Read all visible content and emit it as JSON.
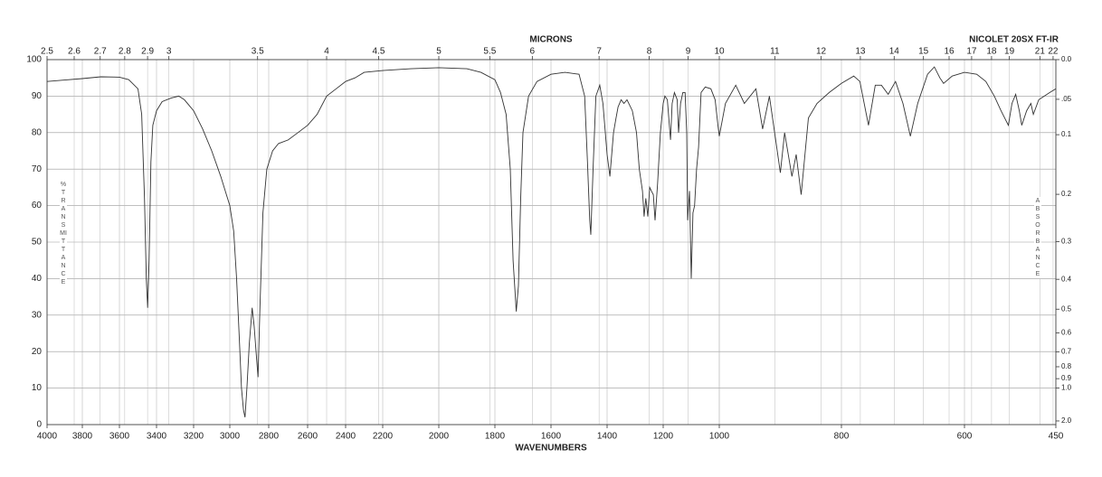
{
  "chart_data": {
    "type": "line",
    "title": "NICOLET 20SX FT-IR",
    "x2label": "MICRONS",
    "xlabel": "WAVENUMBERS",
    "ylabel": "%TRANSMITTANCE",
    "y2label": "ABSORBANCE",
    "color": "#333333",
    "grid": true,
    "xlim": [
      4000,
      450
    ],
    "xticks": [
      4000,
      3800,
      3600,
      3400,
      3200,
      3000,
      2800,
      2600,
      2400,
      2200,
      2000,
      1800,
      1600,
      1400,
      1200,
      1000,
      800,
      600,
      450
    ],
    "x2ticks": [
      2.5,
      2.6,
      2.7,
      2.8,
      2.9,
      3,
      3.5,
      4,
      4.5,
      5,
      5.5,
      6,
      7,
      8,
      9,
      10,
      11,
      12,
      13,
      14,
      15,
      16,
      17,
      18,
      19,
      21,
      22
    ],
    "ylim": [
      0,
      100
    ],
    "yticks": [
      0,
      10,
      20,
      30,
      40,
      50,
      60,
      70,
      80,
      90,
      100
    ],
    "y2ticks": [
      {
        "value": 0,
        "label": "0.0"
      },
      {
        "value": 0.05,
        "label": ".05"
      },
      0.1,
      0.2,
      0.3,
      0.4,
      0.5,
      0.6,
      0.7,
      0.8,
      0.9,
      {
        "value": 1,
        "label": "1.0"
      },
      {
        "value": 2,
        "label": "2.0"
      }
    ],
    "x": [
      4000,
      3900,
      3800,
      3700,
      3600,
      3550,
      3500,
      3480,
      3465,
      3455,
      3448,
      3440,
      3430,
      3420,
      3400,
      3370,
      3320,
      3280,
      3250,
      3200,
      3150,
      3100,
      3050,
      3000,
      2980,
      2965,
      2950,
      2940,
      2930,
      2922,
      2912,
      2900,
      2885,
      2875,
      2865,
      2855,
      2845,
      2830,
      2810,
      2780,
      2750,
      2700,
      2650,
      2600,
      2550,
      2500,
      2450,
      2400,
      2350,
      2300,
      2200,
      2100,
      2000,
      1900,
      1850,
      1800,
      1780,
      1760,
      1745,
      1735,
      1724,
      1716,
      1708,
      1700,
      1680,
      1650,
      1600,
      1550,
      1500,
      1480,
      1470,
      1462,
      1458,
      1450,
      1440,
      1426,
      1415,
      1400,
      1390,
      1377,
      1368,
      1361,
      1350,
      1340,
      1329,
      1310,
      1295,
      1285,
      1274,
      1268,
      1262,
      1255,
      1248,
      1242,
      1235,
      1229,
      1220,
      1210,
      1200,
      1194,
      1185,
      1174,
      1168,
      1160,
      1150,
      1145,
      1138,
      1130,
      1122,
      1116,
      1113,
      1106,
      1100,
      1094,
      1088,
      1081,
      1074,
      1065,
      1050,
      1030,
      1015,
      1005,
      1000,
      990,
      973,
      959,
      940,
      929,
      918,
      900,
      893,
      881,
      874,
      866,
      854,
      840,
      820,
      800,
      780,
      770,
      756,
      745,
      735,
      724,
      712,
      700,
      688,
      676,
      660,
      649,
      640,
      634,
      620,
      600,
      580,
      565,
      551,
      540,
      528,
      522,
      516,
      510,
      506,
      498,
      491,
      487,
      478,
      469,
      460,
      450
    ],
    "values": [
      94,
      94.4,
      94.8,
      95.3,
      95.2,
      94.5,
      92,
      85,
      62,
      40,
      32,
      45,
      72,
      82,
      86,
      88.5,
      89.5,
      90,
      89,
      86,
      81,
      75,
      68,
      60,
      53,
      40,
      22,
      10,
      4,
      2,
      10,
      22,
      32,
      27,
      20,
      13,
      32,
      58,
      70,
      75,
      77,
      78,
      80,
      82,
      85,
      90,
      92,
      94,
      95,
      96.5,
      97,
      97.5,
      97.8,
      97.5,
      96.5,
      94.5,
      91,
      85,
      70,
      45,
      31,
      38,
      62,
      80,
      90,
      94,
      96,
      96.5,
      96,
      90,
      72,
      56,
      52,
      70,
      90,
      93,
      88,
      74,
      68,
      80,
      84,
      87,
      89,
      88,
      89,
      86,
      80,
      70,
      64,
      57,
      62,
      57,
      65,
      64,
      63,
      56,
      66,
      80,
      88,
      90,
      89,
      78,
      88,
      91,
      89,
      80,
      88,
      91,
      91,
      80,
      56,
      64,
      40,
      58,
      60,
      70,
      76,
      91,
      92.5,
      92,
      89,
      82,
      79,
      88,
      93,
      88,
      92,
      81,
      90,
      69,
      80,
      68,
      74,
      63,
      84,
      88,
      91,
      93.5,
      95.5,
      94,
      82,
      93,
      93,
      90.5,
      94,
      88,
      79,
      88,
      96,
      98,
      95,
      93.5,
      95.5,
      96.5,
      96,
      94,
      90,
      86,
      82,
      88,
      90.5,
      86,
      82,
      86,
      88,
      85,
      89,
      90,
      91,
      92
    ]
  }
}
